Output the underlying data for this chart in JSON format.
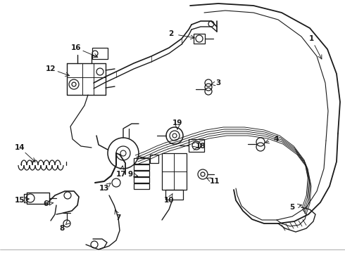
{
  "bg_color": "#ffffff",
  "line_color": "#1a1a1a",
  "figsize": [
    4.9,
    3.6
  ],
  "dpi": 100,
  "border_color": "#cccccc",
  "label_fs": 7.5,
  "arrow_lw": 0.7,
  "component_lw": 0.9
}
